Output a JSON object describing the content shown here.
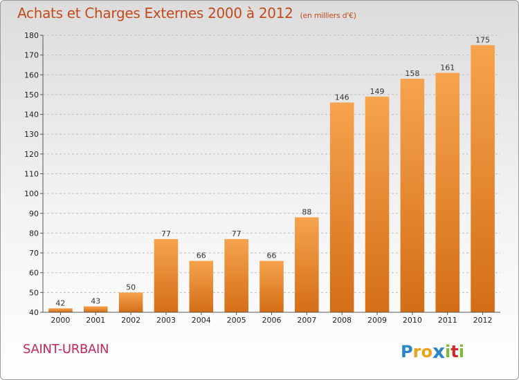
{
  "chart_data": {
    "type": "bar",
    "title": "Achats et Charges Externes 2000 à 2012",
    "subtitle": "(en milliers d'€)",
    "categories": [
      "2000",
      "2001",
      "2002",
      "2003",
      "2004",
      "2005",
      "2006",
      "2007",
      "2008",
      "2009",
      "2010",
      "2011",
      "2012"
    ],
    "values": [
      42,
      43,
      50,
      77,
      66,
      77,
      66,
      88,
      146,
      149,
      158,
      161,
      175
    ],
    "ylim": [
      40,
      180
    ],
    "yticks": [
      40,
      50,
      60,
      70,
      80,
      90,
      100,
      110,
      120,
      130,
      140,
      150,
      160,
      170,
      180
    ],
    "xlabel": "",
    "ylabel": "",
    "grid": true,
    "colors": {
      "bar_top": "#f6a34e",
      "bar_bottom": "#d46e16"
    }
  },
  "commune": "SAINT-URBAIN",
  "logo": {
    "letters": [
      "P",
      "r",
      "o",
      "x",
      "i",
      "t",
      "i"
    ],
    "colors": [
      "#2b86c8",
      "#e8a21b",
      "#e8a21b",
      "#2b86c8",
      "#7dbb2e",
      "#cf2a2a",
      "#7dbb2e"
    ]
  }
}
